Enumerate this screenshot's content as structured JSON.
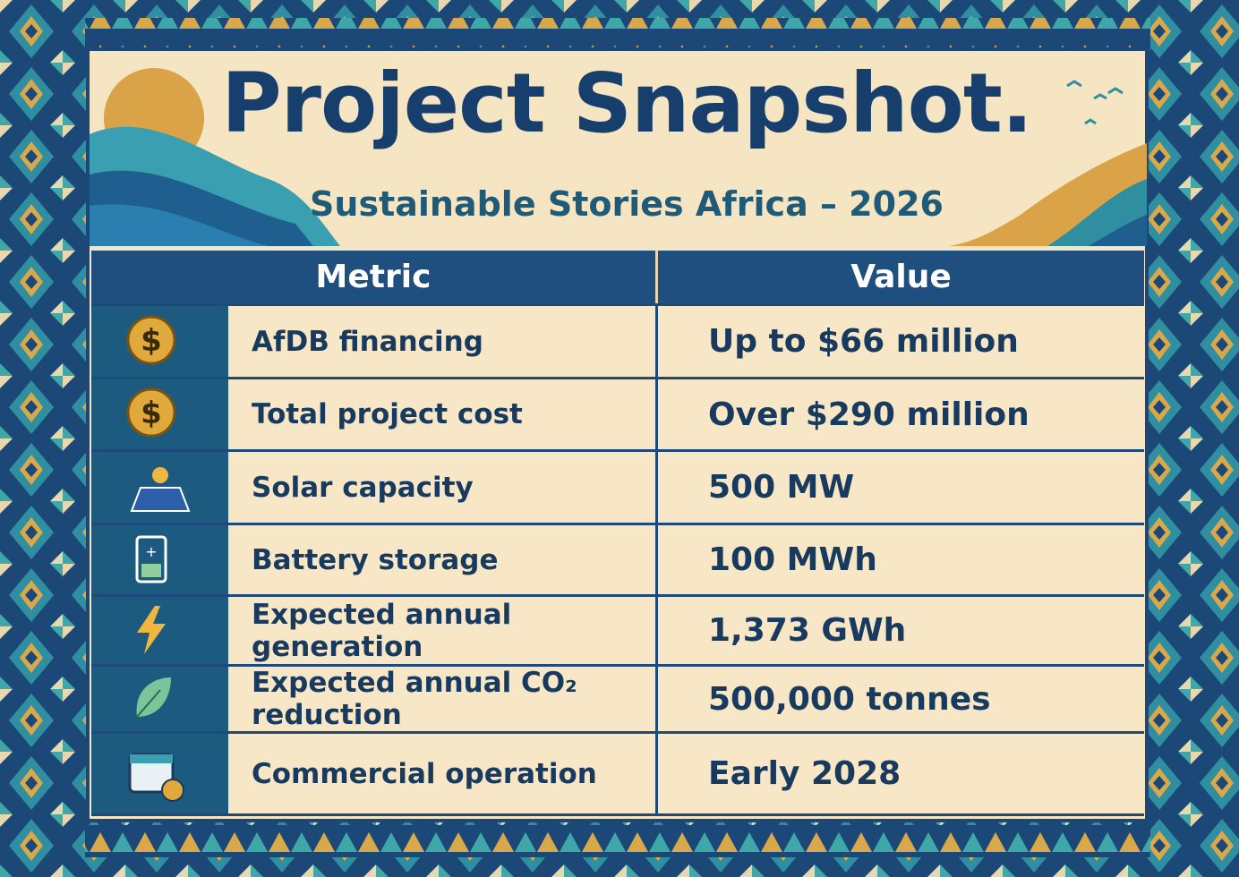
{
  "header": {
    "title": "Project Snapshot.",
    "subtitle": "Sustainable Stories Africa – 2026"
  },
  "table": {
    "columns": [
      "Metric",
      "Value"
    ],
    "rows": [
      [
        "AfDB financing",
        "Up to $66 million"
      ],
      [
        "Total project cost",
        "Over $290 million"
      ],
      [
        "Solar capacity",
        "500 MW"
      ],
      [
        "Battery storage",
        "100 MWh"
      ],
      [
        "Expected annual generation",
        "1,373 GWh"
      ],
      [
        "Expected annual CO₂ reduction",
        "500,000 tonnes"
      ],
      [
        "Commercial operation",
        "Early 2028"
      ]
    ]
  }
}
